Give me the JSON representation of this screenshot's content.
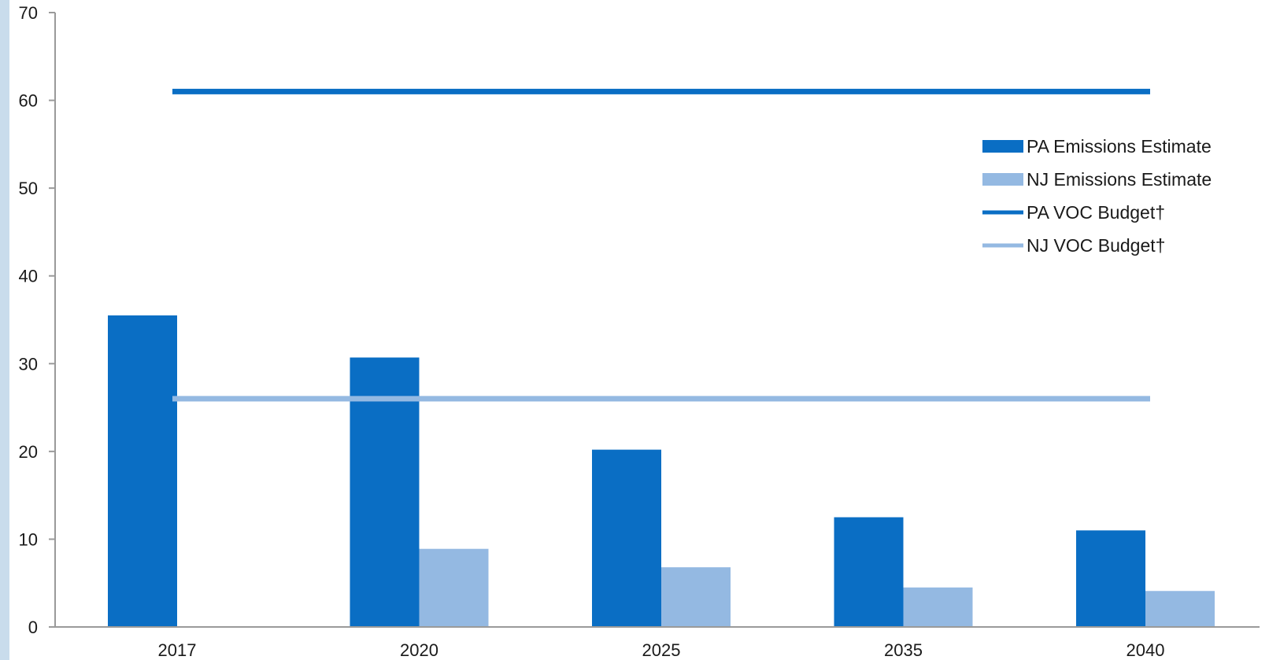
{
  "chart_data": {
    "type": "bar",
    "categories": [
      "2017",
      "2020",
      "2025",
      "2035",
      "2040"
    ],
    "ylim": [
      0,
      70
    ],
    "yticks": [
      0,
      10,
      20,
      30,
      40,
      50,
      60,
      70
    ],
    "grid": false,
    "legend_position": "right",
    "series": [
      {
        "name": "PA Emissions Estimate",
        "kind": "bar",
        "color": "#0a6ec4",
        "values": [
          35.5,
          30.7,
          20.2,
          12.5,
          11.0
        ]
      },
      {
        "name": "NJ Emissions Estimate",
        "kind": "bar",
        "color": "#94b9e2",
        "values": [
          null,
          8.9,
          6.8,
          4.5,
          4.1
        ]
      },
      {
        "name": "PA VOC Budget†",
        "kind": "line",
        "color": "#0a6ec4",
        "values": [
          61,
          61,
          61,
          61,
          61
        ]
      },
      {
        "name": "NJ VOC Budget†",
        "kind": "line",
        "color": "#94b9e2",
        "values": [
          26,
          26,
          26,
          26,
          26
        ]
      }
    ]
  }
}
